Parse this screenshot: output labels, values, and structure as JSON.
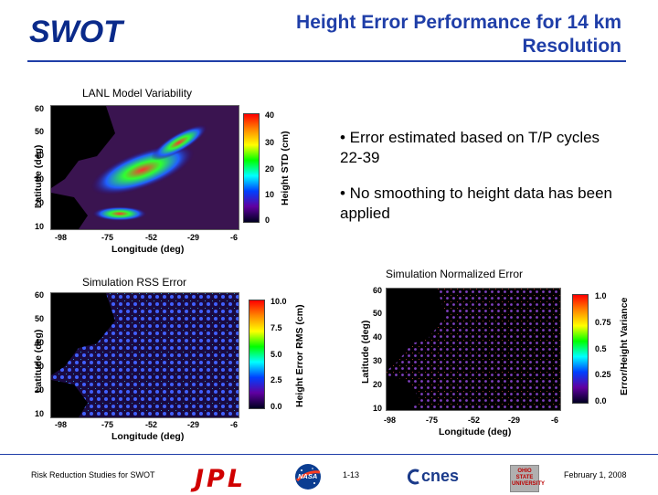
{
  "header": {
    "logo": "SWOT",
    "title_line1": "Height Error Performance for 14 km",
    "title_line2": "Resolution"
  },
  "bullets": [
    "• Error estimated based on T/P cycles 22-39",
    "• No smoothing to height data has been applied"
  ],
  "panels": {
    "lanl": {
      "caption": "LANL Model Variability",
      "ylabel": "Latitude (deg)",
      "xlabel": "Longitude (deg)",
      "yticks": [
        "60",
        "50",
        "40",
        "30",
        "20",
        "10"
      ],
      "xticks": [
        "-98",
        "-75",
        "-52",
        "-29",
        "-6"
      ],
      "cbar_label": "Height STD (cm)",
      "cbar_ticks": [
        "40",
        "30",
        "20",
        "10",
        "0"
      ]
    },
    "rss": {
      "caption": "Simulation RSS Error",
      "ylabel": "Latitude (deg)",
      "xlabel": "Longitude (deg)",
      "yticks": [
        "60",
        "50",
        "40",
        "30",
        "20",
        "10"
      ],
      "xticks": [
        "-98",
        "-75",
        "-52",
        "-29",
        "-6"
      ],
      "cbar_label": "Height Error RMS (cm)",
      "cbar_ticks": [
        "10.0",
        "7.5",
        "5.0",
        "2.5",
        "0.0"
      ]
    },
    "norm": {
      "caption": "Simulation Normalized Error",
      "ylabel": "Latitude (deg)",
      "xlabel": "Longitude (deg)",
      "yticks": [
        "60",
        "50",
        "40",
        "30",
        "20",
        "10"
      ],
      "xticks": [
        "-98",
        "-75",
        "-52",
        "-29",
        "-6"
      ],
      "cbar_label": "Error/Height Variance",
      "cbar_ticks": [
        "1.0",
        "0.75",
        "0.5",
        "0.25",
        "0.0"
      ]
    }
  },
  "footer": {
    "left": "Risk Reduction Studies for SWOT",
    "jpl": "JPL",
    "nasa": "NASA",
    "page": "1-13",
    "cnes": "cnes",
    "osu": "OHIO STATE UNIVERSITY",
    "date": "February 1, 2008"
  }
}
